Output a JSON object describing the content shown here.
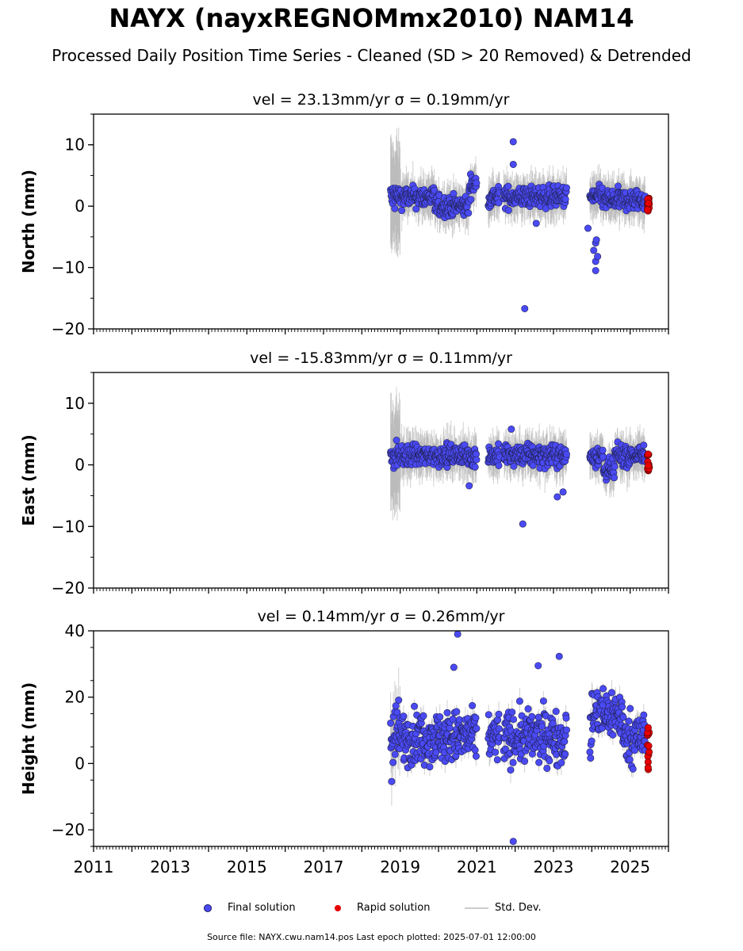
{
  "title": "NAYX (nayxREGNOMmx2010) NAM14",
  "subtitle": "Processed Daily Position Time Series - Cleaned (SD > 20 Removed) & Detrended",
  "legend": {
    "final": "Final solution",
    "rapid": "Rapid solution",
    "std": "Std. Dev."
  },
  "footer": "Source file: NAYX.cwu.nam14.pos  Last epoch plotted: 2025-07-01 12:00:00",
  "colors": {
    "final": "#4a4af5",
    "rapid": "#e60000",
    "std": "#b0b0b0"
  },
  "chart_data": [
    {
      "type": "scatter",
      "panel_title": "vel = 23.13mm/yr   σ = 0.19mm/yr",
      "ylabel": "North (mm)",
      "xlim": [
        2011,
        2026
      ],
      "ylim": [
        -20,
        15
      ],
      "yticks": [
        10,
        0,
        -10,
        -20
      ],
      "ytick_labels": [
        "10",
        "0",
        "−10",
        "−20"
      ],
      "xticks": [],
      "xtick_labels": [],
      "segments": [
        [
          2018.75,
          2020.1
        ],
        [
          2020.1,
          2021.0
        ],
        [
          2021.3,
          2021.6
        ],
        [
          2021.7,
          2023.35
        ],
        [
          2023.95,
          2025.4
        ]
      ],
      "outliers": [
        [
          2021.95,
          10.5
        ],
        [
          2021.95,
          6.8
        ],
        [
          2022.25,
          -16.7
        ],
        [
          2022.55,
          -2.8
        ],
        [
          2023.9,
          -3.6
        ],
        [
          2024.1,
          -10.5
        ],
        [
          2024.1,
          -9.0
        ],
        [
          2024.15,
          -8.2
        ],
        [
          2024.05,
          -7.2
        ],
        [
          2024.1,
          -6.0
        ],
        [
          2024.12,
          -5.5
        ]
      ],
      "rapid": [
        2025.45,
        2025.5
      ],
      "rapid_range": [
        -1,
        1.5
      ]
    },
    {
      "type": "scatter",
      "panel_title": "vel = -15.83mm/yr   σ = 0.11mm/yr",
      "ylabel": "East (mm)",
      "xlim": [
        2011,
        2026
      ],
      "ylim": [
        -20,
        15
      ],
      "yticks": [
        10,
        0,
        -10,
        -20
      ],
      "ytick_labels": [
        "10",
        "0",
        "−10",
        "−20"
      ],
      "xticks": [],
      "xtick_labels": [],
      "segments": [
        [
          2018.75,
          2020.1
        ],
        [
          2020.1,
          2021.0
        ],
        [
          2021.3,
          2021.6
        ],
        [
          2021.7,
          2023.35
        ],
        [
          2023.95,
          2025.4
        ]
      ],
      "outliers": [
        [
          2021.9,
          5.8
        ],
        [
          2022.2,
          -9.6
        ],
        [
          2023.25,
          -4.4
        ],
        [
          2020.8,
          -3.4
        ],
        [
          2023.1,
          -5.2
        ]
      ],
      "rapid": [
        2025.45,
        2025.5
      ],
      "rapid_range": [
        -1,
        1.8
      ]
    },
    {
      "type": "scatter",
      "panel_title": "vel = 0.14mm/yr   σ = 0.26mm/yr",
      "ylabel": "Height (mm)",
      "xlim": [
        2011,
        2026
      ],
      "ylim": [
        -25,
        40
      ],
      "yticks": [
        40,
        20,
        0,
        -20
      ],
      "ytick_labels": [
        "40",
        "20",
        "0",
        "−20"
      ],
      "xticks": [
        2011,
        2013,
        2015,
        2017,
        2019,
        2021,
        2023,
        2025
      ],
      "xtick_labels": [
        "2011",
        "2013",
        "2015",
        "2017",
        "2019",
        "2021",
        "2023",
        "2025"
      ],
      "segments": [
        [
          2018.75,
          2020.1
        ],
        [
          2020.1,
          2021.0
        ],
        [
          2021.3,
          2021.6
        ],
        [
          2021.7,
          2023.35
        ],
        [
          2023.95,
          2025.4
        ]
      ],
      "outliers": [
        [
          2020.5,
          39.0
        ],
        [
          2021.95,
          -23.5
        ],
        [
          2023.15,
          32.3
        ],
        [
          2020.4,
          29.0
        ],
        [
          2022.6,
          29.5
        ]
      ],
      "rapid": [
        2025.45,
        2025.5
      ],
      "rapid_range": [
        -2,
        11
      ]
    }
  ]
}
